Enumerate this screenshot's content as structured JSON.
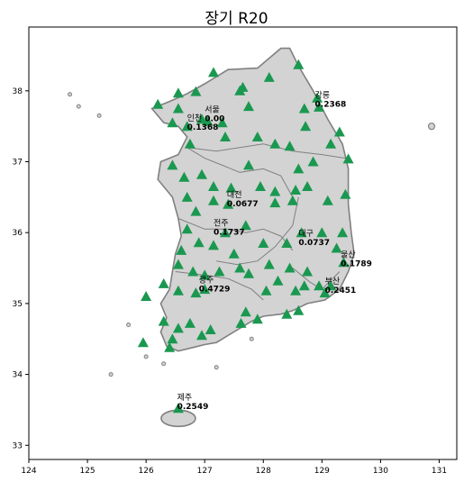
{
  "title": "장기 R20",
  "colors": {
    "land": "#d3d3d3",
    "border": "#808080",
    "marker": "#1a9850",
    "frame": "#000000"
  },
  "axes": {
    "x_range": [
      124,
      131.3
    ],
    "y_range": [
      32.8,
      38.9
    ],
    "x_ticks": [
      "124",
      "125",
      "126",
      "127",
      "128",
      "129",
      "130",
      "131"
    ],
    "y_ticks": [
      "33",
      "34",
      "35",
      "36",
      "37",
      "38"
    ]
  },
  "stations": [
    {
      "lon": 126.2,
      "lat": 37.81
    },
    {
      "lon": 126.55,
      "lat": 37.97
    },
    {
      "lon": 126.85,
      "lat": 37.99
    },
    {
      "lon": 127.15,
      "lat": 38.26
    },
    {
      "lon": 127.65,
      "lat": 38.05
    },
    {
      "lon": 128.1,
      "lat": 38.19
    },
    {
      "lon": 128.6,
      "lat": 38.37
    },
    {
      "lon": 128.92,
      "lat": 37.9
    },
    {
      "lon": 126.55,
      "lat": 37.75
    },
    {
      "lon": 126.45,
      "lat": 37.55
    },
    {
      "lon": 126.7,
      "lat": 37.5
    },
    {
      "lon": 126.95,
      "lat": 37.6
    },
    {
      "lon": 127.05,
      "lat": 37.57
    },
    {
      "lon": 127.3,
      "lat": 37.55
    },
    {
      "lon": 127.6,
      "lat": 38.0
    },
    {
      "lon": 127.75,
      "lat": 37.78
    },
    {
      "lon": 127.35,
      "lat": 37.35
    },
    {
      "lon": 127.9,
      "lat": 37.35
    },
    {
      "lon": 128.2,
      "lat": 37.25
    },
    {
      "lon": 128.45,
      "lat": 37.22
    },
    {
      "lon": 128.7,
      "lat": 37.75
    },
    {
      "lon": 128.95,
      "lat": 37.77
    },
    {
      "lon": 128.72,
      "lat": 37.5
    },
    {
      "lon": 129.15,
      "lat": 37.25
    },
    {
      "lon": 129.3,
      "lat": 37.42
    },
    {
      "lon": 129.45,
      "lat": 37.04
    },
    {
      "lon": 128.85,
      "lat": 37.0
    },
    {
      "lon": 128.6,
      "lat": 36.9
    },
    {
      "lon": 126.75,
      "lat": 37.25
    },
    {
      "lon": 126.45,
      "lat": 36.95
    },
    {
      "lon": 126.65,
      "lat": 36.78
    },
    {
      "lon": 126.95,
      "lat": 36.82
    },
    {
      "lon": 127.15,
      "lat": 36.65
    },
    {
      "lon": 127.45,
      "lat": 36.63
    },
    {
      "lon": 127.75,
      "lat": 36.95
    },
    {
      "lon": 127.95,
      "lat": 36.65
    },
    {
      "lon": 128.2,
      "lat": 36.58
    },
    {
      "lon": 128.55,
      "lat": 36.6
    },
    {
      "lon": 128.75,
      "lat": 36.65
    },
    {
      "lon": 129.4,
      "lat": 36.54
    },
    {
      "lon": 128.2,
      "lat": 36.42
    },
    {
      "lon": 128.5,
      "lat": 36.45
    },
    {
      "lon": 129.1,
      "lat": 36.45
    },
    {
      "lon": 126.7,
      "lat": 36.5
    },
    {
      "lon": 126.85,
      "lat": 36.3
    },
    {
      "lon": 127.15,
      "lat": 36.45
    },
    {
      "lon": 127.4,
      "lat": 36.4
    },
    {
      "lon": 127.35,
      "lat": 36.0
    },
    {
      "lon": 127.7,
      "lat": 36.1
    },
    {
      "lon": 126.7,
      "lat": 36.05
    },
    {
      "lon": 126.9,
      "lat": 35.86
    },
    {
      "lon": 127.15,
      "lat": 35.82
    },
    {
      "lon": 127.5,
      "lat": 35.7
    },
    {
      "lon": 128.0,
      "lat": 35.85
    },
    {
      "lon": 128.4,
      "lat": 35.85
    },
    {
      "lon": 128.65,
      "lat": 36.0
    },
    {
      "lon": 129.0,
      "lat": 36.0
    },
    {
      "lon": 129.35,
      "lat": 36.0
    },
    {
      "lon": 129.25,
      "lat": 35.78
    },
    {
      "lon": 129.37,
      "lat": 35.58
    },
    {
      "lon": 126.6,
      "lat": 35.75
    },
    {
      "lon": 126.55,
      "lat": 35.55
    },
    {
      "lon": 126.8,
      "lat": 35.45
    },
    {
      "lon": 127.0,
      "lat": 35.4
    },
    {
      "lon": 127.25,
      "lat": 35.45
    },
    {
      "lon": 127.6,
      "lat": 35.5
    },
    {
      "lon": 127.75,
      "lat": 35.42
    },
    {
      "lon": 128.1,
      "lat": 35.55
    },
    {
      "lon": 128.25,
      "lat": 35.32
    },
    {
      "lon": 128.45,
      "lat": 35.5
    },
    {
      "lon": 128.75,
      "lat": 35.45
    },
    {
      "lon": 128.05,
      "lat": 35.18
    },
    {
      "lon": 128.55,
      "lat": 35.18
    },
    {
      "lon": 128.7,
      "lat": 35.25
    },
    {
      "lon": 128.95,
      "lat": 35.25
    },
    {
      "lon": 129.05,
      "lat": 35.15
    },
    {
      "lon": 129.15,
      "lat": 35.25
    },
    {
      "lon": 126.3,
      "lat": 35.28
    },
    {
      "lon": 126.0,
      "lat": 35.1
    },
    {
      "lon": 126.55,
      "lat": 35.18
    },
    {
      "lon": 126.85,
      "lat": 35.15
    },
    {
      "lon": 127.0,
      "lat": 35.2
    },
    {
      "lon": 126.3,
      "lat": 34.75
    },
    {
      "lon": 126.55,
      "lat": 34.65
    },
    {
      "lon": 126.75,
      "lat": 34.72
    },
    {
      "lon": 127.1,
      "lat": 34.63
    },
    {
      "lon": 126.45,
      "lat": 34.5
    },
    {
      "lon": 126.95,
      "lat": 34.55
    },
    {
      "lon": 127.7,
      "lat": 34.88
    },
    {
      "lon": 127.62,
      "lat": 34.72
    },
    {
      "lon": 127.9,
      "lat": 34.78
    },
    {
      "lon": 128.4,
      "lat": 34.85
    },
    {
      "lon": 128.6,
      "lat": 34.9
    },
    {
      "lon": 125.95,
      "lat": 34.45
    },
    {
      "lon": 126.4,
      "lat": 34.38
    },
    {
      "lon": 126.55,
      "lat": 33.52
    }
  ],
  "labels": [
    {
      "name": "강릉",
      "value": "0.2368",
      "lon": 128.88,
      "lat": 37.9
    },
    {
      "name": "서울",
      "value": "0.00",
      "lon": 127.0,
      "lat": 37.7
    },
    {
      "name": "인천",
      "value": "0.1368",
      "lon": 126.7,
      "lat": 37.58
    },
    {
      "name": "대전",
      "value": "0.0677",
      "lon": 127.38,
      "lat": 36.5
    },
    {
      "name": "전주",
      "value": "0.1737",
      "lon": 127.15,
      "lat": 36.1
    },
    {
      "name": "대구",
      "value": "0.0737",
      "lon": 128.6,
      "lat": 35.95
    },
    {
      "name": "울산",
      "value": "0.1789",
      "lon": 129.32,
      "lat": 35.65
    },
    {
      "name": "광주",
      "value": "0.4729",
      "lon": 126.9,
      "lat": 35.3
    },
    {
      "name": "부산",
      "value": "0.2451",
      "lon": 129.05,
      "lat": 35.28
    },
    {
      "name": "제주",
      "value": "0.2549",
      "lon": 126.53,
      "lat": 33.64
    }
  ]
}
